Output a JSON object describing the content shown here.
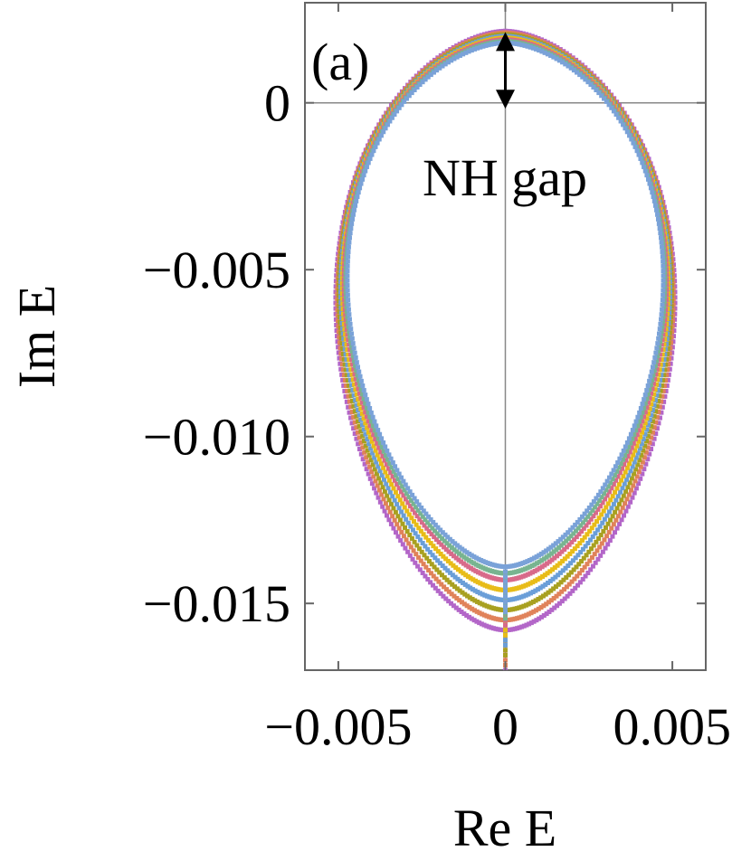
{
  "chart_data": {
    "type": "scatter",
    "title": "",
    "panel_label": "(a)",
    "xlabel": "Re E",
    "ylabel": "Im E",
    "xlim": [
      -0.006,
      0.006
    ],
    "ylim": [
      -0.017,
      0.003
    ],
    "x_ticks": [
      {
        "value": -0.005,
        "label": "−0.005"
      },
      {
        "value": 0,
        "label": "0"
      },
      {
        "value": 0.005,
        "label": "0.005"
      }
    ],
    "y_ticks": [
      {
        "value": 0,
        "label": "0"
      },
      {
        "value": -0.005,
        "label": "−0.005"
      },
      {
        "value": -0.01,
        "label": "−0.010"
      },
      {
        "value": -0.015,
        "label": "−0.015"
      }
    ],
    "grid": false,
    "zero_lines": true,
    "annotation": {
      "text": "NH gap",
      "arrow_from": [
        0,
        0.002
      ],
      "arrow_to": [
        0,
        0
      ]
    },
    "series": [
      {
        "color": "#b366c8",
        "top": 0.00215,
        "bottom": -0.0158,
        "half_width": 0.00505
      },
      {
        "color": "#e0825a",
        "top": 0.0021,
        "bottom": -0.0155,
        "half_width": 0.005
      },
      {
        "color": "#a8a020",
        "top": 0.00205,
        "bottom": -0.0152,
        "half_width": 0.00495
      },
      {
        "color": "#6a9ed8",
        "top": 0.002,
        "bottom": -0.0149,
        "half_width": 0.0049
      },
      {
        "color": "#e8bc18",
        "top": 0.00195,
        "bottom": -0.0146,
        "half_width": 0.00485
      },
      {
        "color": "#d86a8a",
        "top": 0.0019,
        "bottom": -0.0143,
        "half_width": 0.0048
      },
      {
        "color": "#78b490",
        "top": 0.00185,
        "bottom": -0.0141,
        "half_width": 0.00475
      },
      {
        "color": "#7aa2d8",
        "top": 0.0018,
        "bottom": -0.0139,
        "half_width": 0.0047
      }
    ]
  }
}
